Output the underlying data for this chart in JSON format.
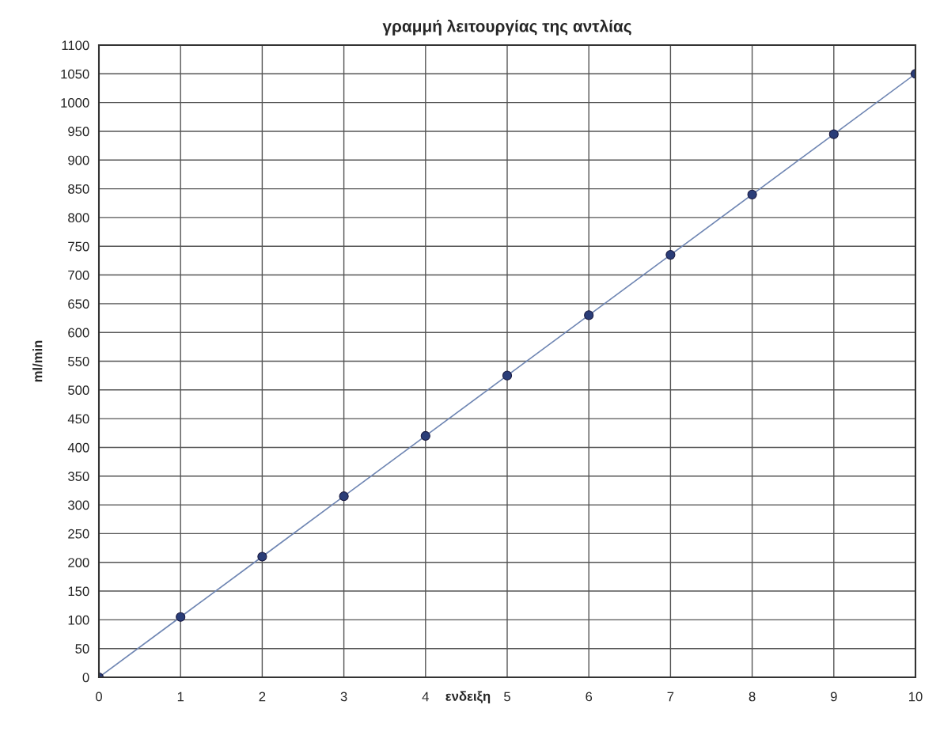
{
  "chart_data": {
    "type": "line",
    "title": "γραμμή λειτουργίας της αντλίας",
    "xlabel": "ενδειξη",
    "ylabel": "ml/min",
    "x": [
      0,
      1,
      2,
      3,
      4,
      5,
      6,
      7,
      8,
      9,
      10
    ],
    "series": [
      {
        "color": "#6f86b3",
        "values": [
          0,
          105,
          210,
          315,
          420,
          525,
          630,
          735,
          840,
          945,
          1050
        ]
      }
    ],
    "xlim": [
      0,
      10
    ],
    "xticks": [
      0,
      1,
      2,
      3,
      4,
      5,
      6,
      7,
      8,
      9,
      10
    ],
    "ylim": [
      0,
      1100
    ],
    "yticks": [
      0,
      50,
      100,
      150,
      200,
      250,
      300,
      350,
      400,
      450,
      500,
      550,
      600,
      650,
      700,
      750,
      800,
      850,
      900,
      950,
      1000,
      1050,
      1100
    ],
    "grid": true,
    "marker": "circle",
    "line_style": "solid",
    "legend": false
  }
}
